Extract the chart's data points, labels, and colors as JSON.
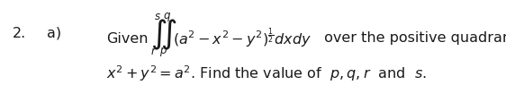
{
  "number": "2.",
  "part": "a)",
  "background_color": "#ffffff",
  "text_color": "#1a1a1a",
  "fontsize_main": 11.5,
  "fontsize_small": 8.5,
  "fontsize_integral": 18,
  "line1_given": "Given",
  "line1_suffix": " over the positive quadrant of the circle",
  "line2": "$x^2 + y^2 = a^2$. Find the value of  $p, q, r$  and  $s$.",
  "integrand": "$(a^2 - x^2 - y^2)^{\\frac{1}{2}}dxdy$",
  "upper_left": "s",
  "upper_right": "q",
  "lower_left": "r",
  "lower_right": "p"
}
